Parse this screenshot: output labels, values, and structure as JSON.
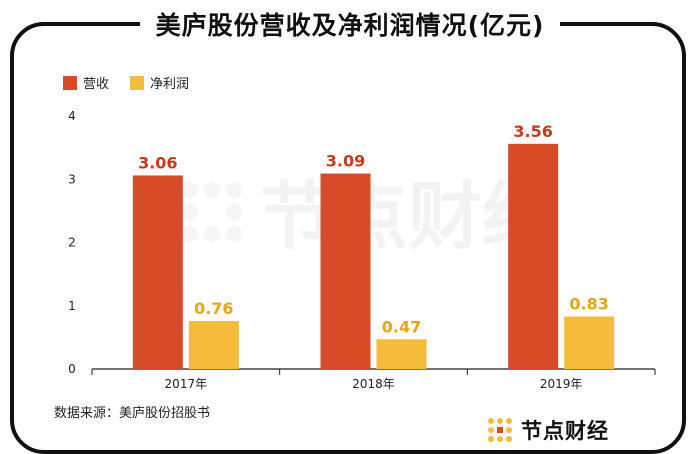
{
  "title": "美庐股份营收及净利润情况(亿元)",
  "source": "数据来源：美庐股份招股书",
  "brand": "节点财经",
  "watermark": "节点财经",
  "colors": {
    "revenue": "#d94a28",
    "profit": "#f5bc3c",
    "axis": "#222222",
    "label_revenue": "#c9391b",
    "label_profit": "#e9a717"
  },
  "chart_data": {
    "type": "bar",
    "title": "美庐股份营收及净利润情况(亿元)",
    "categories": [
      "2017年",
      "2018年",
      "2019年"
    ],
    "series": [
      {
        "name": "营收",
        "values": [
          3.06,
          3.09,
          3.56
        ],
        "labels": [
          "3.06",
          "3.09",
          "3.56"
        ]
      },
      {
        "name": "净利润",
        "values": [
          0.76,
          0.47,
          0.83
        ],
        "labels": [
          "0.76",
          "0.47",
          "0.83"
        ]
      }
    ],
    "xlabel": "",
    "ylabel": "",
    "ylim": [
      0,
      4
    ],
    "yticks": [
      0,
      1,
      2,
      3,
      4
    ],
    "yticks_labels": [
      "0",
      "1",
      "2",
      "3",
      "4"
    ],
    "grid": false,
    "legend": "top-left"
  }
}
